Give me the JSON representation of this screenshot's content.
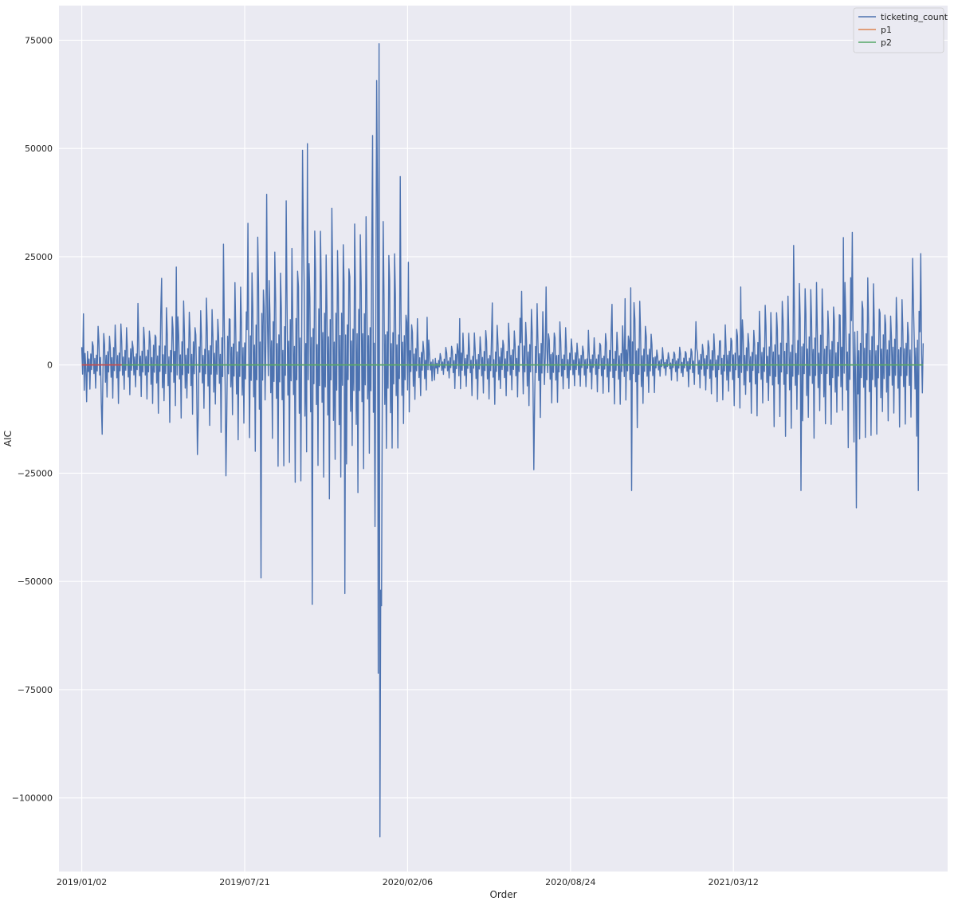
{
  "chart_data": {
    "type": "line",
    "title": "",
    "xlabel": "Order",
    "ylabel": "AIC",
    "x_axis": {
      "type": "date",
      "range": [
        "2018-12-05",
        "2021-11-30"
      ],
      "tick_labels": [
        "2019/01/02",
        "2019/07/21",
        "2020/02/06",
        "2020/08/24",
        "2021/03/12"
      ]
    },
    "y_axis": {
      "range": [
        -117000,
        83000
      ],
      "ticks": [
        75000,
        50000,
        25000,
        0,
        -25000,
        -50000,
        -75000,
        -100000
      ],
      "tick_labels": [
        "75000",
        "50000",
        "25000",
        "0",
        "−25000",
        "−50000",
        "−75000",
        "−100000"
      ]
    },
    "grid": true,
    "legend": {
      "placement": "top-right"
    },
    "series": [
      {
        "name": "ticketing_count",
        "color": "#4c72b0",
        "x_start": "2019-01-02",
        "x_end": "2021-10-31",
        "peaks": [
          {
            "date": "2019-01-04",
            "value": 11800
          },
          {
            "date": "2019-01-08",
            "value": -8500
          },
          {
            "date": "2019-01-27",
            "value": -16000
          },
          {
            "date": "2019-03-12",
            "value": 14200
          },
          {
            "date": "2019-04-10",
            "value": 20000
          },
          {
            "date": "2019-04-28",
            "value": 22600
          },
          {
            "date": "2019-05-24",
            "value": -20700
          },
          {
            "date": "2019-06-25",
            "value": 27900
          },
          {
            "date": "2019-06-28",
            "value": -25600
          },
          {
            "date": "2019-07-25",
            "value": 32700
          },
          {
            "date": "2019-08-10",
            "value": -49200
          },
          {
            "date": "2019-08-17",
            "value": 39400
          },
          {
            "date": "2019-09-10",
            "value": 37900
          },
          {
            "date": "2019-09-30",
            "value": 49600
          },
          {
            "date": "2019-10-06",
            "value": 51100
          },
          {
            "date": "2019-10-12",
            "value": -55300
          },
          {
            "date": "2019-11-21",
            "value": -52800
          },
          {
            "date": "2019-12-25",
            "value": 53000
          },
          {
            "date": "2019-12-30",
            "value": 65700
          },
          {
            "date": "2020-01-01",
            "value": -71200
          },
          {
            "date": "2020-01-02",
            "value": 74200
          },
          {
            "date": "2020-01-03",
            "value": -109000
          },
          {
            "date": "2020-01-05",
            "value": -55600
          },
          {
            "date": "2020-01-28",
            "value": 43500
          },
          {
            "date": "2020-02-07",
            "value": 23700
          },
          {
            "date": "2020-03-01",
            "value": 11000
          },
          {
            "date": "2020-03-10",
            "value": -3500
          },
          {
            "date": "2020-04-10",
            "value": 10700
          },
          {
            "date": "2020-05-20",
            "value": 14300
          },
          {
            "date": "2020-06-25",
            "value": 17000
          },
          {
            "date": "2020-07-10",
            "value": -24200
          },
          {
            "date": "2020-07-25",
            "value": 18000
          },
          {
            "date": "2020-09-15",
            "value": 8000
          },
          {
            "date": "2020-10-14",
            "value": 14000
          },
          {
            "date": "2020-10-30",
            "value": 15300
          },
          {
            "date": "2020-11-06",
            "value": 17800
          },
          {
            "date": "2020-11-07",
            "value": -29000
          },
          {
            "date": "2020-12-15",
            "value": 4000
          },
          {
            "date": "2021-01-25",
            "value": 10000
          },
          {
            "date": "2021-03-21",
            "value": 18000
          },
          {
            "date": "2021-05-25",
            "value": 27600
          },
          {
            "date": "2021-06-03",
            "value": -29000
          },
          {
            "date": "2021-07-25",
            "value": 29400
          },
          {
            "date": "2021-08-05",
            "value": 30600
          },
          {
            "date": "2021-08-10",
            "value": -33000
          },
          {
            "date": "2021-10-18",
            "value": 24600
          },
          {
            "date": "2021-10-25",
            "value": -29000
          },
          {
            "date": "2021-10-28",
            "value": 25700
          },
          {
            "date": "2021-10-31",
            "value": 5000
          }
        ]
      },
      {
        "name": "p1",
        "color": "#dd8452",
        "points": [
          {
            "date": "2019-01-02",
            "value": 0
          },
          {
            "date": "2021-10-31",
            "value": 0
          }
        ]
      },
      {
        "name": "p2",
        "color": "#55a868",
        "points": [
          {
            "date": "2019-01-02",
            "value": 0
          },
          {
            "date": "2021-10-31",
            "value": 0
          }
        ]
      },
      {
        "name": "",
        "color": "#c44e52",
        "points": [
          {
            "date": "2019-01-02",
            "value": 0
          },
          {
            "date": "2019-02-20",
            "value": 0
          }
        ]
      }
    ]
  }
}
